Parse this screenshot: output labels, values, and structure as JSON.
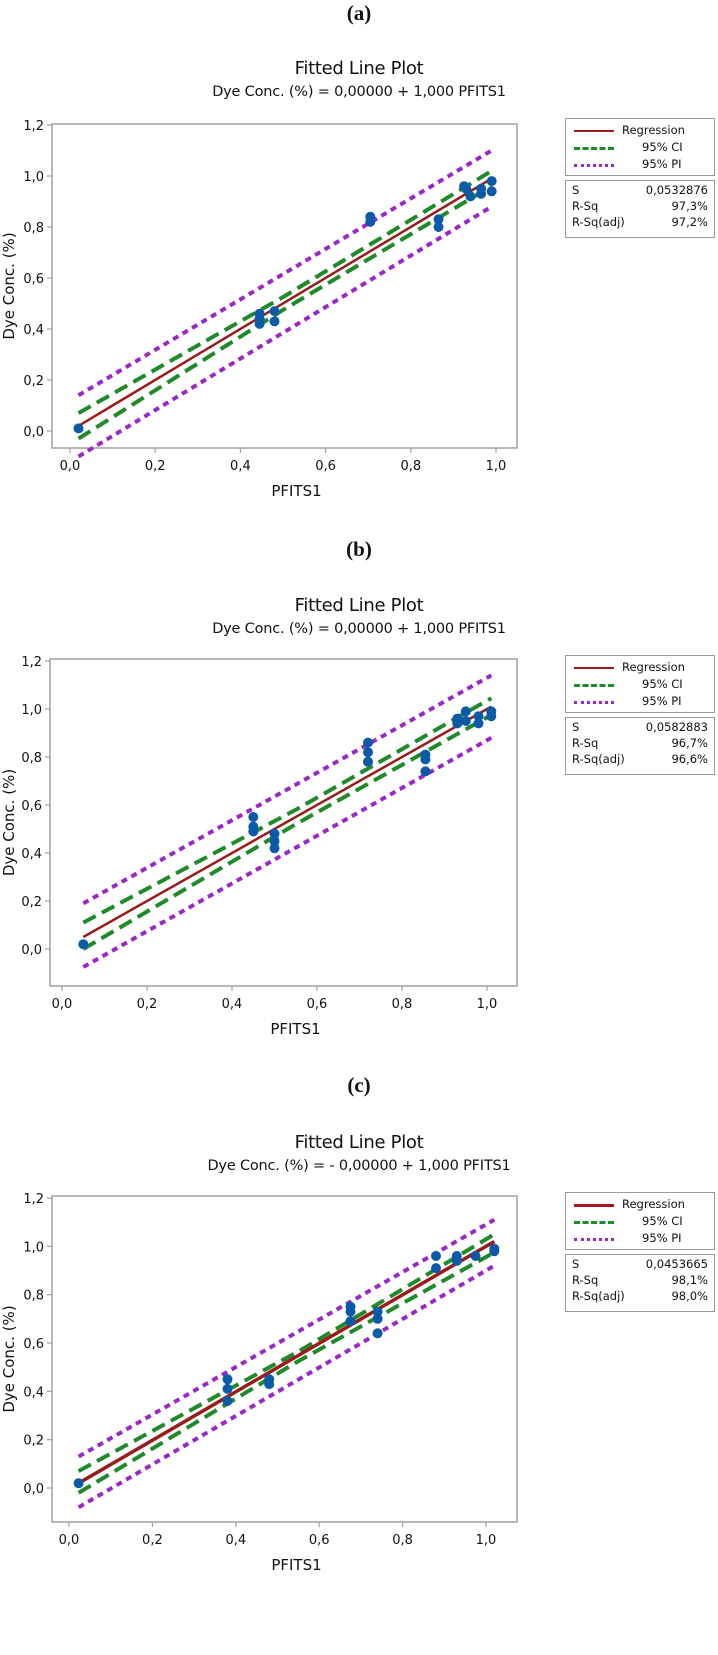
{
  "colors": {
    "regression": "#9b1b1b",
    "ci": "#1f8a2a",
    "pi": "#9b27c7",
    "points": "#0b5aa8",
    "frame": "#a0a0a0"
  },
  "legend": {
    "regression": "Regression",
    "ci": "95% CI",
    "pi": "95% PI"
  },
  "stats_labels": {
    "s": "S",
    "rsq": "R-Sq",
    "rsq_adj": "R-Sq(adj)"
  },
  "panels": [
    {
      "label": "(a)",
      "title": "Fitted Line Plot",
      "subtitle": "Dye Conc. (%) = 0,00000 + 1,000 PFITS1",
      "xlabel": "PFITS1",
      "ylabel": "Dye Conc. (%)",
      "stats": {
        "s": "0,0532876",
        "rsq": "97,3%",
        "rsq_adj": "97,2%"
      }
    },
    {
      "label": "(b)",
      "title": "Fitted Line Plot",
      "subtitle": "Dye Conc. (%) = 0,00000 + 1,000 PFITS1",
      "xlabel": "PFITS1",
      "ylabel": "Dye Conc. (%)",
      "stats": {
        "s": "0,0582883",
        "rsq": "96,7%",
        "rsq_adj": "96,6%"
      }
    },
    {
      "label": "(c)",
      "title": "Fitted Line Plot",
      "subtitle": "Dye Conc. (%) = - 0,00000 + 1,000 PFITS1",
      "xlabel": "PFITS1",
      "ylabel": "Dye Conc. (%)",
      "stats": {
        "s": "0,0453665",
        "rsq": "98,1%",
        "rsq_adj": "98,0%"
      }
    }
  ],
  "chart_data": [
    {
      "type": "scatter",
      "title": "Fitted Line Plot",
      "subtitle": "Dye Conc. (%) = 0,00000 + 1,000 PFITS1",
      "xlabel": "PFITS1",
      "ylabel": "Dye Conc. (%)",
      "xlim": [
        -0.04,
        1.04
      ],
      "ylim": [
        -0.2,
        1.2
      ],
      "xticks": [
        "0,0",
        "0,2",
        "0,4",
        "0,6",
        "0,8",
        "1,0"
      ],
      "yticks": [
        "0,0",
        "0,2",
        "0,4",
        "0,6",
        "0,8",
        "1,0",
        "1,2"
      ],
      "legend": [
        "Regression",
        "95% CI",
        "95% PI"
      ],
      "legend_position": "right",
      "grid": false,
      "points": [
        [
          0.02,
          0.01
        ],
        [
          0.445,
          0.46
        ],
        [
          0.445,
          0.44
        ],
        [
          0.445,
          0.42
        ],
        [
          0.48,
          0.47
        ],
        [
          0.48,
          0.43
        ],
        [
          0.705,
          0.84
        ],
        [
          0.705,
          0.82
        ],
        [
          0.865,
          0.83
        ],
        [
          0.865,
          0.8
        ],
        [
          0.925,
          0.96
        ],
        [
          0.93,
          0.95
        ],
        [
          0.94,
          0.92
        ],
        [
          0.965,
          0.95
        ],
        [
          0.965,
          0.93
        ],
        [
          0.99,
          0.98
        ],
        [
          0.99,
          0.94
        ]
      ],
      "regression": {
        "x": [
          0.02,
          0.99
        ],
        "y": [
          0.02,
          0.99
        ]
      },
      "ci_upper": {
        "x": [
          0.02,
          0.5,
          0.99
        ],
        "y": [
          0.07,
          0.525,
          1.02
        ]
      },
      "ci_lower": {
        "x": [
          0.02,
          0.5,
          0.99
        ],
        "y": [
          -0.03,
          0.475,
          0.96
        ]
      },
      "pi_upper": {
        "x": [
          0.02,
          0.99
        ],
        "y": [
          0.14,
          1.1
        ]
      },
      "pi_lower": {
        "x": [
          0.02,
          0.99
        ],
        "y": [
          -0.1,
          0.88
        ]
      },
      "stats": {
        "S": 0.0532876,
        "R-Sq": "97,3%",
        "R-Sq(adj)": "97,2%"
      }
    },
    {
      "type": "scatter",
      "title": "Fitted Line Plot",
      "subtitle": "Dye Conc. (%) = 0,00000 + 1,000 PFITS1",
      "xlabel": "PFITS1",
      "ylabel": "Dye Conc. (%)",
      "xlim": [
        -0.03,
        1.06
      ],
      "ylim": [
        -0.16,
        1.2
      ],
      "xticks": [
        "0,0",
        "0,2",
        "0,4",
        "0,6",
        "0,8",
        "1,0"
      ],
      "yticks": [
        "0,0",
        "0,2",
        "0,4",
        "0,6",
        "0,8",
        "1,0",
        "1,2"
      ],
      "legend": [
        "Regression",
        "95% CI",
        "95% PI"
      ],
      "legend_position": "right",
      "grid": false,
      "points": [
        [
          0.05,
          0.02
        ],
        [
          0.45,
          0.55
        ],
        [
          0.45,
          0.51
        ],
        [
          0.45,
          0.49
        ],
        [
          0.5,
          0.48
        ],
        [
          0.5,
          0.45
        ],
        [
          0.5,
          0.42
        ],
        [
          0.72,
          0.86
        ],
        [
          0.72,
          0.82
        ],
        [
          0.72,
          0.78
        ],
        [
          0.855,
          0.81
        ],
        [
          0.855,
          0.79
        ],
        [
          0.855,
          0.74
        ],
        [
          0.93,
          0.96
        ],
        [
          0.93,
          0.94
        ],
        [
          0.95,
          0.99
        ],
        [
          0.95,
          0.95
        ],
        [
          0.98,
          0.97
        ],
        [
          0.98,
          0.94
        ],
        [
          1.01,
          0.99
        ],
        [
          1.01,
          0.97
        ]
      ],
      "regression": {
        "x": [
          0.05,
          1.01
        ],
        "y": [
          0.05,
          1.01
        ]
      },
      "ci_upper": {
        "x": [
          0.05,
          0.55,
          1.01
        ],
        "y": [
          0.11,
          0.58,
          1.045
        ]
      },
      "ci_lower": {
        "x": [
          0.05,
          0.55,
          1.01
        ],
        "y": [
          0.0,
          0.52,
          0.975
        ]
      },
      "pi_upper": {
        "x": [
          0.05,
          1.01
        ],
        "y": [
          0.19,
          1.14
        ]
      },
      "pi_lower": {
        "x": [
          0.05,
          1.01
        ],
        "y": [
          -0.075,
          0.88
        ]
      },
      "stats": {
        "S": 0.0582883,
        "R-Sq": "96,7%",
        "R-Sq(adj)": "96,6%"
      }
    },
    {
      "type": "scatter",
      "title": "Fitted Line Plot",
      "subtitle": "Dye Conc. (%) = - 0,00000 + 1,000 PFITS1",
      "xlabel": "PFITS1",
      "ylabel": "Dye Conc. (%)",
      "xlim": [
        -0.04,
        1.08
      ],
      "ylim": [
        -0.15,
        1.2
      ],
      "xticks": [
        "0,0",
        "0,2",
        "0,4",
        "0,6",
        "0,8",
        "1,0"
      ],
      "yticks": [
        "0,0",
        "0,2",
        "0,4",
        "0,6",
        "0,8",
        "1,0",
        "1,2"
      ],
      "legend": [
        "Regression",
        "95% CI",
        "95% PI"
      ],
      "legend_position": "right",
      "grid": false,
      "points": [
        [
          0.023,
          0.02
        ],
        [
          0.38,
          0.45
        ],
        [
          0.38,
          0.41
        ],
        [
          0.38,
          0.36
        ],
        [
          0.48,
          0.45
        ],
        [
          0.48,
          0.43
        ],
        [
          0.675,
          0.75
        ],
        [
          0.675,
          0.73
        ],
        [
          0.675,
          0.69
        ],
        [
          0.74,
          0.73
        ],
        [
          0.74,
          0.7
        ],
        [
          0.74,
          0.64
        ],
        [
          0.88,
          0.96
        ],
        [
          0.88,
          0.91
        ],
        [
          0.93,
          0.96
        ],
        [
          0.93,
          0.94
        ],
        [
          0.975,
          0.96
        ],
        [
          1.02,
          0.99
        ],
        [
          1.02,
          0.98
        ]
      ],
      "regression": {
        "x": [
          0.023,
          1.02
        ],
        "y": [
          0.02,
          1.02
        ]
      },
      "ci_upper": {
        "x": [
          0.023,
          0.55,
          1.02
        ],
        "y": [
          0.07,
          0.565,
          1.05
        ]
      },
      "ci_lower": {
        "x": [
          0.023,
          0.55,
          1.02
        ],
        "y": [
          -0.02,
          0.525,
          0.975
        ]
      },
      "pi_upper": {
        "x": [
          0.023,
          1.02
        ],
        "y": [
          0.13,
          1.11
        ]
      },
      "pi_lower": {
        "x": [
          0.023,
          1.02
        ],
        "y": [
          -0.08,
          0.92
        ]
      },
      "stats": {
        "S": 0.0453665,
        "R-Sq": "98,1%",
        "R-Sq(adj)": "98,0%"
      }
    }
  ]
}
